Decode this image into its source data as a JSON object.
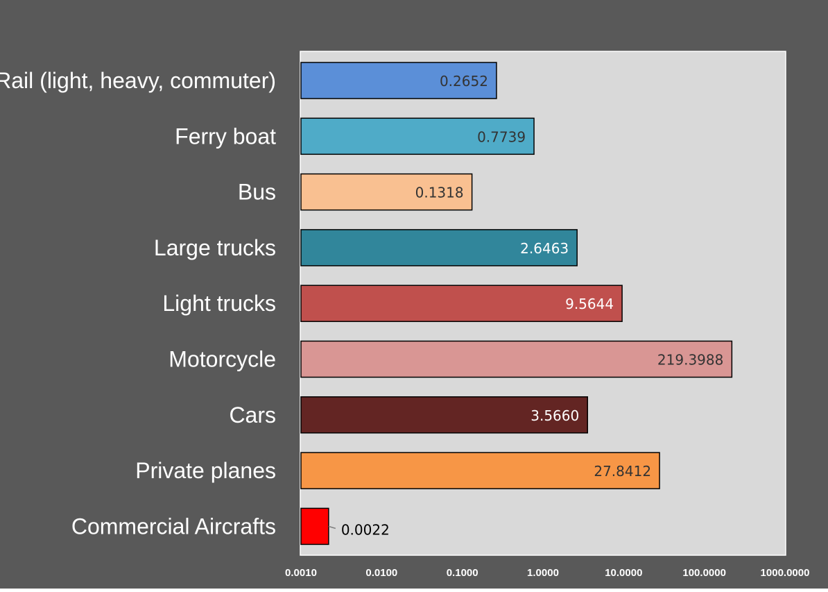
{
  "chart_data": {
    "type": "bar",
    "orientation": "horizontal",
    "x_scale": "log",
    "xlim": [
      0.001,
      1000
    ],
    "x_ticks": [
      "0.0010",
      "0.0100",
      "0.1000",
      "1.0000",
      "10.0000",
      "100.0000",
      "1000.0000"
    ],
    "grid": false,
    "categories": [
      "Rail (light, heavy, commuter)",
      "Ferry boat",
      "Bus",
      "Large trucks",
      "Light trucks",
      "Motorcycle",
      "Cars",
      "Private planes",
      "Commercial Aircrafts"
    ],
    "values": [
      0.2652,
      0.7739,
      0.1318,
      2.6463,
      9.5644,
      219.3988,
      3.566,
      27.8412,
      0.0022
    ],
    "value_labels": [
      "0.2652",
      "0.7739",
      "0.1318",
      "2.6463",
      "9.5644",
      "219.3988",
      "3.5660",
      "27.8412",
      "0.0022"
    ],
    "bar_colors": [
      "#5b8fd8",
      "#4fabc8",
      "#f9c091",
      "#31869b",
      "#c0504d",
      "#d99694",
      "#632523",
      "#f79646",
      "#ff0000"
    ],
    "label_colors": [
      "#333333",
      "#333333",
      "#333333",
      "#ffffff",
      "#ffffff",
      "#333333",
      "#ffffff",
      "#333333",
      "#000000"
    ],
    "colors": {
      "outer_background": "#595959",
      "plot_background": "#d9d9d9",
      "text": "#ffffff"
    }
  }
}
